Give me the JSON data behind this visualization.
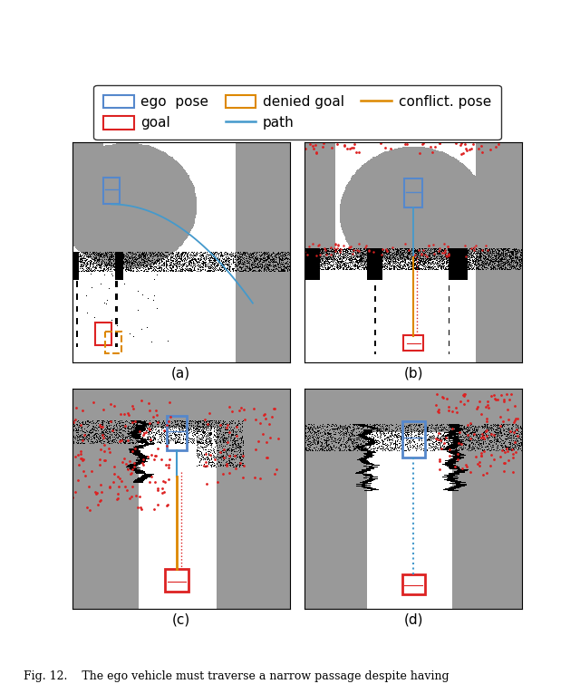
{
  "legend": {
    "ego_pose": {
      "color": "#5588cc",
      "label": "ego  pose"
    },
    "goal": {
      "color": "#dd2222",
      "label": "goal"
    },
    "denied_goal": {
      "color": "#dd8800",
      "label": "denied goal"
    },
    "path_color": "#4499cc",
    "conflict_color": "#dd8800"
  },
  "subplot_labels": [
    "(a)",
    "(b)",
    "(c)",
    "(d)"
  ],
  "caption": "Fig. 12.    The ego vehicle must traverse a narrow passage despite having",
  "figsize": [
    6.4,
    7.55
  ],
  "gray": 0.6,
  "black_thresh": 0.0
}
